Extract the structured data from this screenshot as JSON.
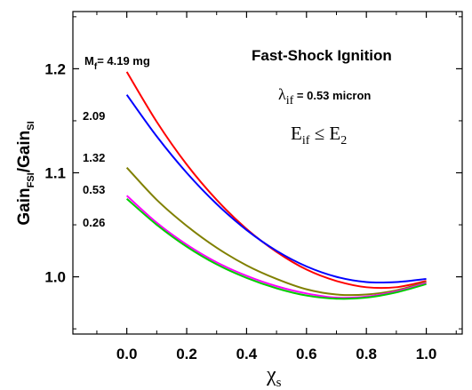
{
  "chart_data": {
    "type": "line",
    "title": "Fast-Shock  Ignition",
    "annotation_wavelength": {
      "symbol": "λ",
      "sub": "if",
      "text": " = 0.53 micron"
    },
    "annotation_energy": {
      "base": "E",
      "sub": "if",
      "op": " ≤ E",
      "sub2": "2"
    },
    "xlabel": {
      "base": "χ",
      "sub": "s"
    },
    "ylabel": {
      "base": "Gain",
      "sub": "FSI",
      "mid": "/Gain",
      "sub2": "SI"
    },
    "xlim": [
      -0.18,
      1.12
    ],
    "ylim": [
      0.945,
      1.255
    ],
    "x_ticks": [
      0.0,
      0.2,
      0.4,
      0.6,
      0.8,
      1.0
    ],
    "x_tick_labels": [
      "0.0",
      "0.2",
      "0.4",
      "0.6",
      "0.8",
      "1.0"
    ],
    "y_ticks": [
      1.0,
      1.1,
      1.2
    ],
    "y_tick_labels": [
      "1.0",
      "1.1",
      "1.2"
    ],
    "mass_label_prefix": {
      "base": "M",
      "sub": "f",
      "rest": "= 4.19 mg"
    },
    "series": [
      {
        "label": "4.19",
        "color": "#ff0000",
        "x": [
          0.0,
          0.1,
          0.2,
          0.3,
          0.4,
          0.5,
          0.6,
          0.7,
          0.8,
          0.9,
          1.0
        ],
        "y": [
          1.197,
          1.149,
          1.108,
          1.074,
          1.046,
          1.024,
          1.007,
          0.996,
          0.99,
          0.99,
          0.996
        ]
      },
      {
        "label": "2.09",
        "color": "#0000ff",
        "x": [
          0.0,
          0.1,
          0.2,
          0.3,
          0.4,
          0.5,
          0.6,
          0.7,
          0.8,
          0.9,
          1.0
        ],
        "y": [
          1.175,
          1.135,
          1.1,
          1.07,
          1.045,
          1.025,
          1.01,
          1.0,
          0.995,
          0.995,
          0.998
        ]
      },
      {
        "label": "1.32",
        "color": "#808000",
        "x": [
          0.0,
          0.1,
          0.2,
          0.3,
          0.4,
          0.5,
          0.6,
          0.7,
          0.8,
          0.9,
          1.0
        ],
        "y": [
          1.105,
          1.074,
          1.049,
          1.028,
          1.011,
          0.998,
          0.988,
          0.983,
          0.983,
          0.987,
          0.995
        ]
      },
      {
        "label": "0.53",
        "color": "#ff00ff",
        "x": [
          0.0,
          0.1,
          0.2,
          0.3,
          0.4,
          0.5,
          0.6,
          0.7,
          0.8,
          0.9,
          1.0
        ],
        "y": [
          1.078,
          1.052,
          1.031,
          1.014,
          1.001,
          0.991,
          0.984,
          0.98,
          0.981,
          0.986,
          0.994
        ]
      },
      {
        "label": "0.26",
        "color": "#00cc00",
        "x": [
          0.0,
          0.1,
          0.2,
          0.3,
          0.4,
          0.5,
          0.6,
          0.7,
          0.8,
          0.9,
          1.0
        ],
        "y": [
          1.075,
          1.05,
          1.029,
          1.012,
          0.999,
          0.989,
          0.982,
          0.979,
          0.98,
          0.985,
          0.993
        ]
      }
    ]
  }
}
